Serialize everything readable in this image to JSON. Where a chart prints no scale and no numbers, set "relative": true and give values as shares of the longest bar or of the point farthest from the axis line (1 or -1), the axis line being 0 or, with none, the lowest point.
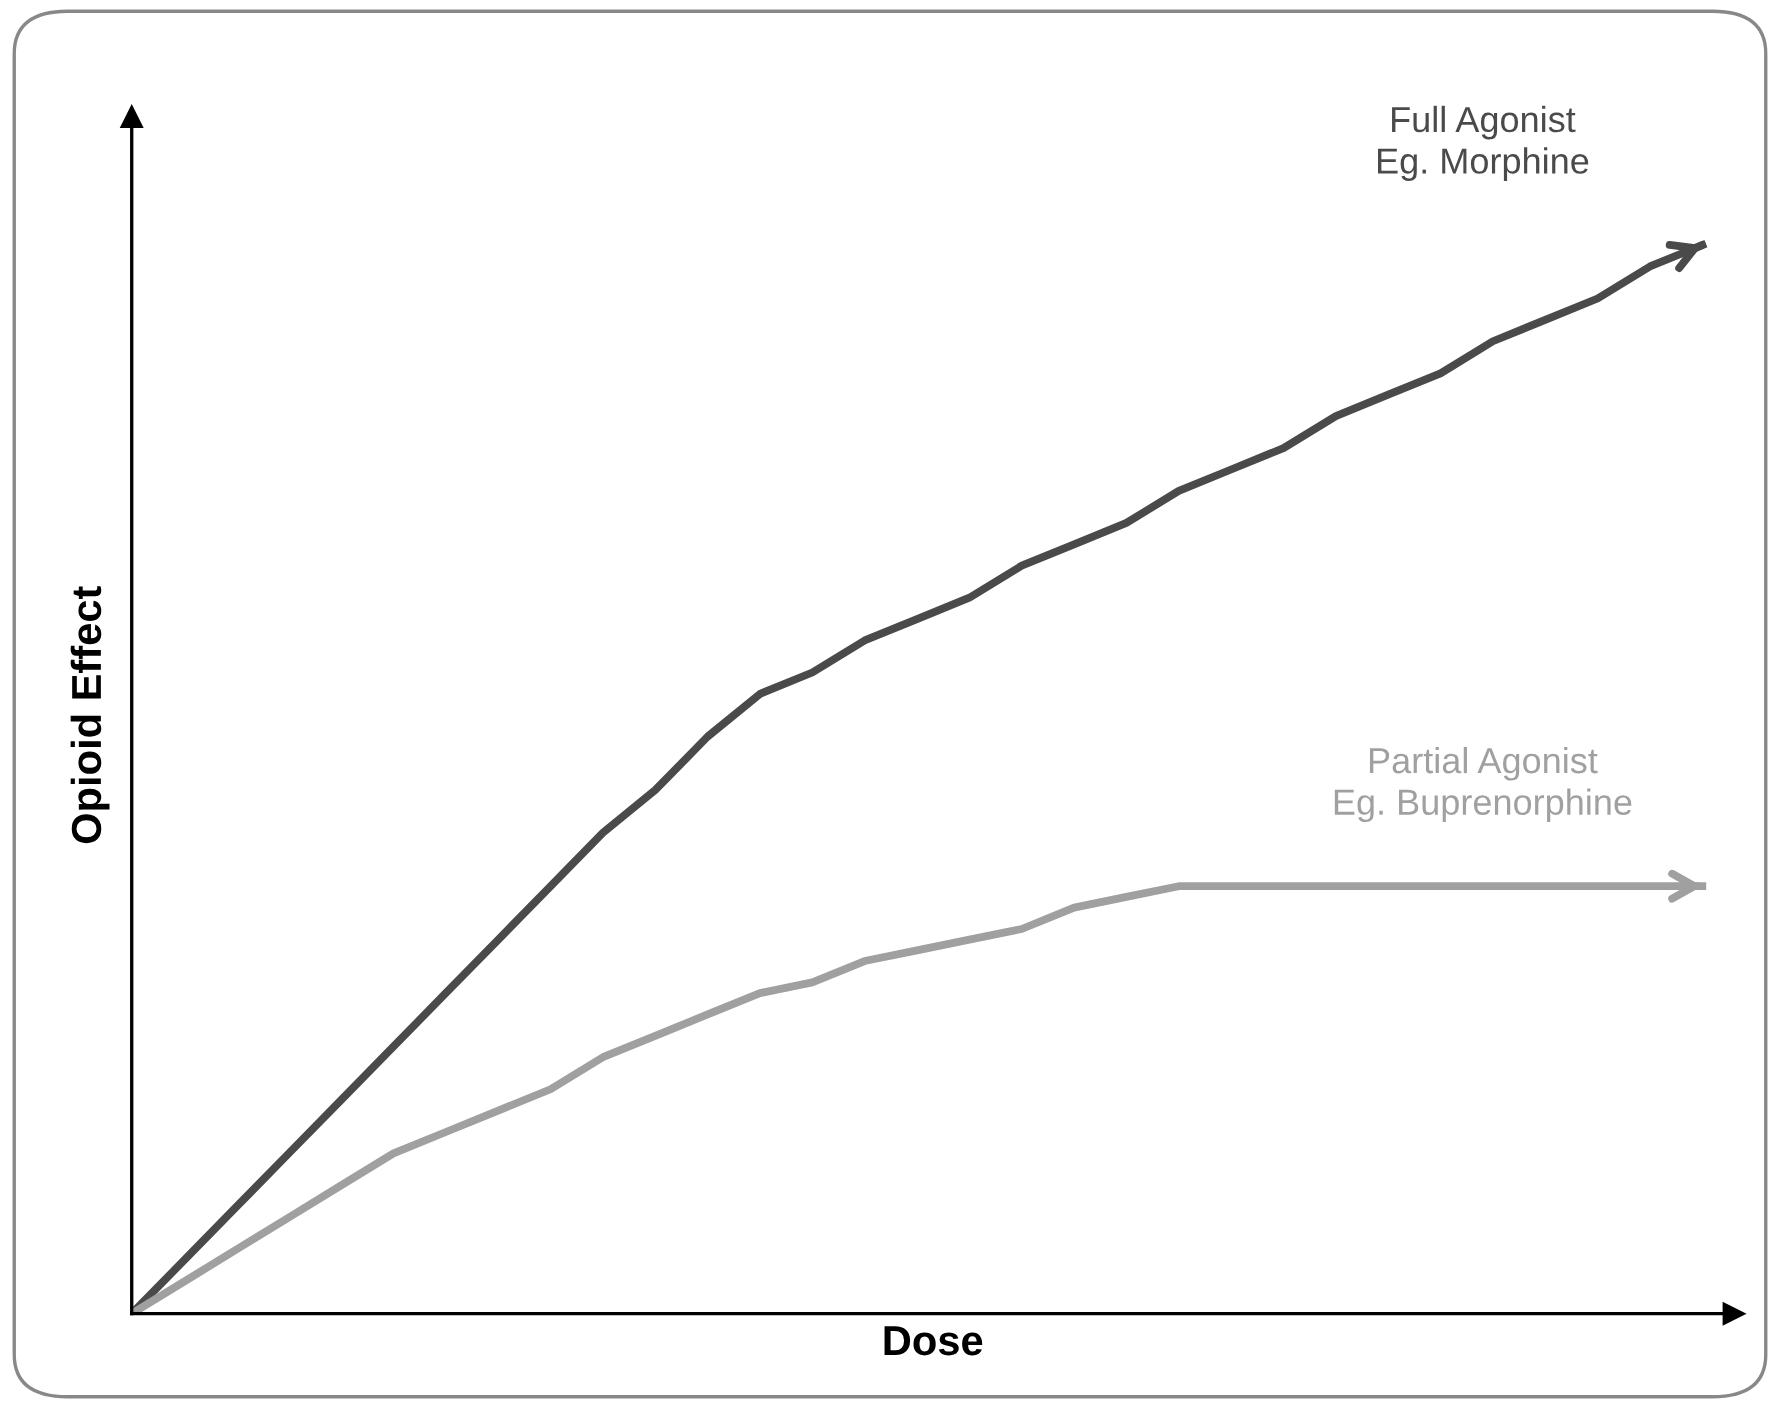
{
  "chart_data": {
    "type": "line",
    "relative": true,
    "xlabel": "Dose",
    "ylabel": "Opioid Effect",
    "legend": false,
    "marker": "none",
    "line_style": "solid",
    "categories": [
      null,
      null,
      null,
      null,
      null,
      null,
      null,
      null,
      null,
      null,
      null,
      null,
      null,
      null,
      null,
      null,
      null,
      null,
      null,
      null,
      null,
      null,
      null,
      null,
      null,
      null,
      null,
      null,
      null,
      null,
      null
    ],
    "series": [
      {
        "name": "Full Agonist\nEg. Morphine",
        "color": "#4a4a4a",
        "values": [
          0,
          0.05,
          0.1,
          0.15,
          0.2,
          0.25,
          0.3,
          0.35,
          0.4,
          0.45,
          0.49,
          0.54,
          0.58,
          0.6,
          0.63,
          0.65,
          0.67,
          0.7,
          0.72,
          0.74,
          0.77,
          0.79,
          0.81,
          0.84,
          0.86,
          0.88,
          0.91,
          0.93,
          0.95,
          0.98,
          1
        ]
      },
      {
        "name": "Partial Agonist\nEg. Buprenorphine",
        "color": "#a0a0a0",
        "values": [
          0,
          0.03,
          0.06,
          0.09,
          0.12,
          0.15,
          0.17,
          0.19,
          0.21,
          0.24,
          0.26,
          0.28,
          0.3,
          0.31,
          0.33,
          0.34,
          0.35,
          0.36,
          0.38,
          0.39,
          0.4,
          0.4,
          0.4,
          0.4,
          0.4,
          0.4,
          0.4,
          0.4,
          0.4,
          0.4,
          0.4
        ]
      }
    ]
  }
}
